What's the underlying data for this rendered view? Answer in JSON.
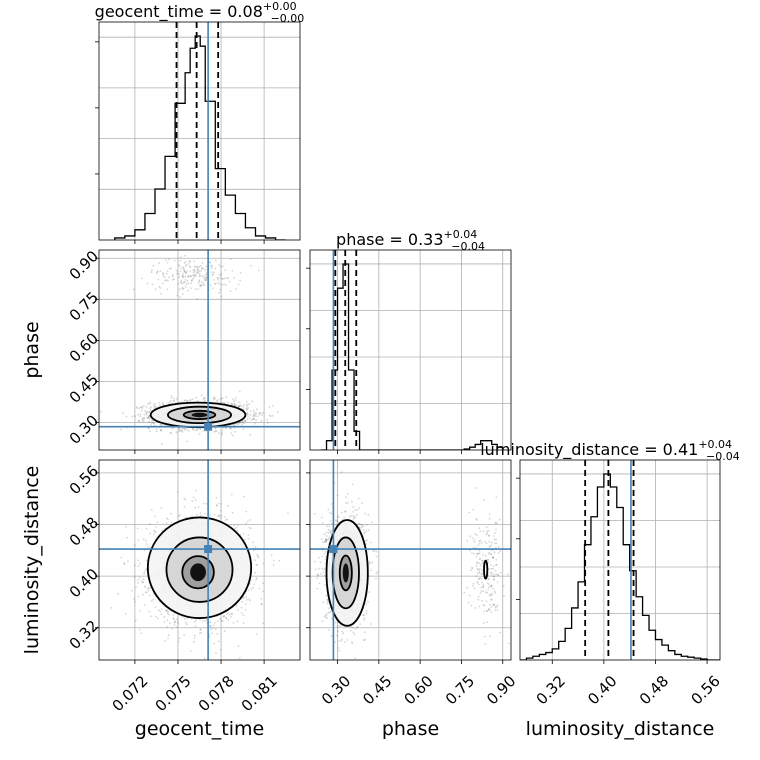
{
  "chart_data": {
    "type": "corner",
    "parameters": [
      "geocent_time",
      "phase",
      "luminosity_distance"
    ],
    "truths": {
      "geocent_time": 0.0771,
      "phase": 0.285,
      "luminosity_distance": 0.442
    },
    "titles": [
      {
        "param": "geocent_time",
        "text": "geocent_time = 0.08",
        "plus": "+0.00",
        "minus": "−0.00"
      },
      {
        "param": "phase",
        "text": "phase = 0.33",
        "plus": "+0.04",
        "minus": "−0.04"
      },
      {
        "param": "luminosity_distance",
        "text": "luminosity_distance = 0.41",
        "plus": "+0.04",
        "minus": "−0.04"
      }
    ],
    "axes": {
      "geocent_time": {
        "label": "geocent_time",
        "range": [
          0.0695,
          0.0835
        ],
        "ticks": [
          0.072,
          0.075,
          0.078,
          0.081
        ],
        "tick_labels": [
          "0.072",
          "0.075",
          "0.078",
          "0.081"
        ]
      },
      "phase": {
        "label": "phase",
        "range": [
          0.2,
          0.93
        ],
        "ticks": [
          0.3,
          0.45,
          0.6,
          0.75,
          0.9
        ],
        "tick_labels": [
          "0.30",
          "0.45",
          "0.60",
          "0.75",
          "0.90"
        ]
      },
      "luminosity_distance": {
        "label": "luminosity_distance",
        "range": [
          0.27,
          0.58
        ],
        "ticks": [
          0.32,
          0.4,
          0.48,
          0.56
        ],
        "tick_labels": [
          "0.32",
          "0.40",
          "0.48",
          "0.56"
        ]
      }
    },
    "histograms": {
      "geocent_time": {
        "bin_edges": [
          0.0706,
          0.0713,
          0.072,
          0.0727,
          0.0734,
          0.0741,
          0.0748,
          0.0755,
          0.07585,
          0.0762,
          0.07655,
          0.0769,
          0.0776,
          0.0783,
          0.079,
          0.0797,
          0.0804,
          0.0811,
          0.0818,
          0.0825
        ],
        "counts": [
          0.01,
          0.02,
          0.05,
          0.13,
          0.25,
          0.41,
          0.67,
          0.82,
          0.94,
          1.0,
          0.95,
          0.68,
          0.35,
          0.22,
          0.13,
          0.06,
          0.02,
          0.01,
          0.0
        ],
        "quantiles": [
          0.0749,
          0.0763,
          0.0778
        ]
      },
      "phase": {
        "bin_edges": [
          0.24,
          0.26,
          0.28,
          0.3,
          0.32,
          0.34,
          0.36,
          0.38,
          0.4,
          0.42,
          0.44,
          0.46,
          0.48,
          0.5,
          0.52,
          0.54,
          0.56,
          0.58,
          0.6,
          0.62,
          0.64,
          0.66,
          0.68,
          0.7,
          0.72,
          0.74,
          0.76,
          0.78,
          0.8,
          0.82,
          0.84,
          0.86,
          0.88,
          0.9
        ],
        "counts": [
          0.0,
          0.05,
          0.43,
          0.87,
          1.0,
          0.43,
          0.1,
          0.0,
          0.0,
          0.0,
          0.0,
          0.0,
          0.0,
          0.0,
          0.0,
          0.0,
          0.0,
          0.0,
          0.0,
          0.0,
          0.0,
          0.0,
          0.0,
          0.0,
          0.0,
          0.0,
          0.005,
          0.015,
          0.03,
          0.05,
          0.05,
          0.03,
          0.015
        ],
        "quantiles": [
          0.292,
          0.328,
          0.368
        ]
      },
      "luminosity_distance": {
        "bin_edges": [
          0.27,
          0.28,
          0.29,
          0.3,
          0.31,
          0.32,
          0.33,
          0.34,
          0.35,
          0.36,
          0.37,
          0.38,
          0.39,
          0.4,
          0.41,
          0.42,
          0.43,
          0.44,
          0.45,
          0.46,
          0.47,
          0.48,
          0.49,
          0.5,
          0.51,
          0.52,
          0.53,
          0.54,
          0.55,
          0.56,
          0.57,
          0.58
        ],
        "counts": [
          0.0,
          0.01,
          0.02,
          0.03,
          0.04,
          0.06,
          0.1,
          0.17,
          0.28,
          0.42,
          0.62,
          0.77,
          0.93,
          1.0,
          0.93,
          0.82,
          0.62,
          0.48,
          0.34,
          0.24,
          0.16,
          0.11,
          0.08,
          0.05,
          0.03,
          0.02,
          0.015,
          0.01,
          0.005,
          0.0,
          0.0
        ],
        "quantiles": [
          0.371,
          0.407,
          0.446
        ]
      }
    },
    "joint": [
      {
        "x": "geocent_time",
        "y": "phase",
        "components": [
          {
            "mean": [
              0.0765,
              0.328
            ],
            "sd": [
              0.0017,
              0.025
            ],
            "weight": 0.9
          },
          {
            "mean": [
              0.0762,
              0.838
            ],
            "sd": [
              0.0016,
              0.03
            ],
            "weight": 0.1
          }
        ],
        "contours": [
          {
            "cx": 0.0764,
            "cy": 0.328,
            "rx": 0.0033,
            "ry": 0.045
          },
          {
            "cx": 0.0765,
            "cy": 0.328,
            "rx": 0.0022,
            "ry": 0.03
          },
          {
            "cx": 0.0765,
            "cy": 0.328,
            "rx": 0.0011,
            "ry": 0.015
          }
        ]
      },
      {
        "x": "geocent_time",
        "y": "luminosity_distance",
        "components": [
          {
            "mean": [
              0.0765,
              0.41
            ],
            "sd": [
              0.0017,
              0.04
            ],
            "weight": 1.0
          }
        ],
        "contours": [
          {
            "cx": 0.0765,
            "cy": 0.413,
            "rx": 0.0036,
            "ry": 0.078
          },
          {
            "cx": 0.0765,
            "cy": 0.41,
            "rx": 0.0023,
            "ry": 0.05
          },
          {
            "cx": 0.0764,
            "cy": 0.406,
            "rx": 0.0011,
            "ry": 0.025
          }
        ]
      },
      {
        "x": "phase",
        "y": "luminosity_distance",
        "components": [
          {
            "mean": [
              0.33,
              0.41
            ],
            "sd": [
              0.035,
              0.04
            ],
            "weight": 0.9
          },
          {
            "mean": [
              0.84,
              0.41
            ],
            "sd": [
              0.03,
              0.04
            ],
            "weight": 0.1
          }
        ],
        "contours": [
          {
            "cx": 0.335,
            "cy": 0.405,
            "rx": 0.075,
            "ry": 0.082
          },
          {
            "cx": 0.33,
            "cy": 0.405,
            "rx": 0.048,
            "ry": 0.055
          },
          {
            "cx": 0.33,
            "cy": 0.405,
            "rx": 0.022,
            "ry": 0.027
          },
          {
            "cx": 0.838,
            "cy": 0.41,
            "rx": 0.006,
            "ry": 0.014
          }
        ]
      }
    ],
    "grid": true,
    "truth_color": "#4682b4",
    "histogram_color": "#000000",
    "sample_color": "#6b6b6b"
  }
}
